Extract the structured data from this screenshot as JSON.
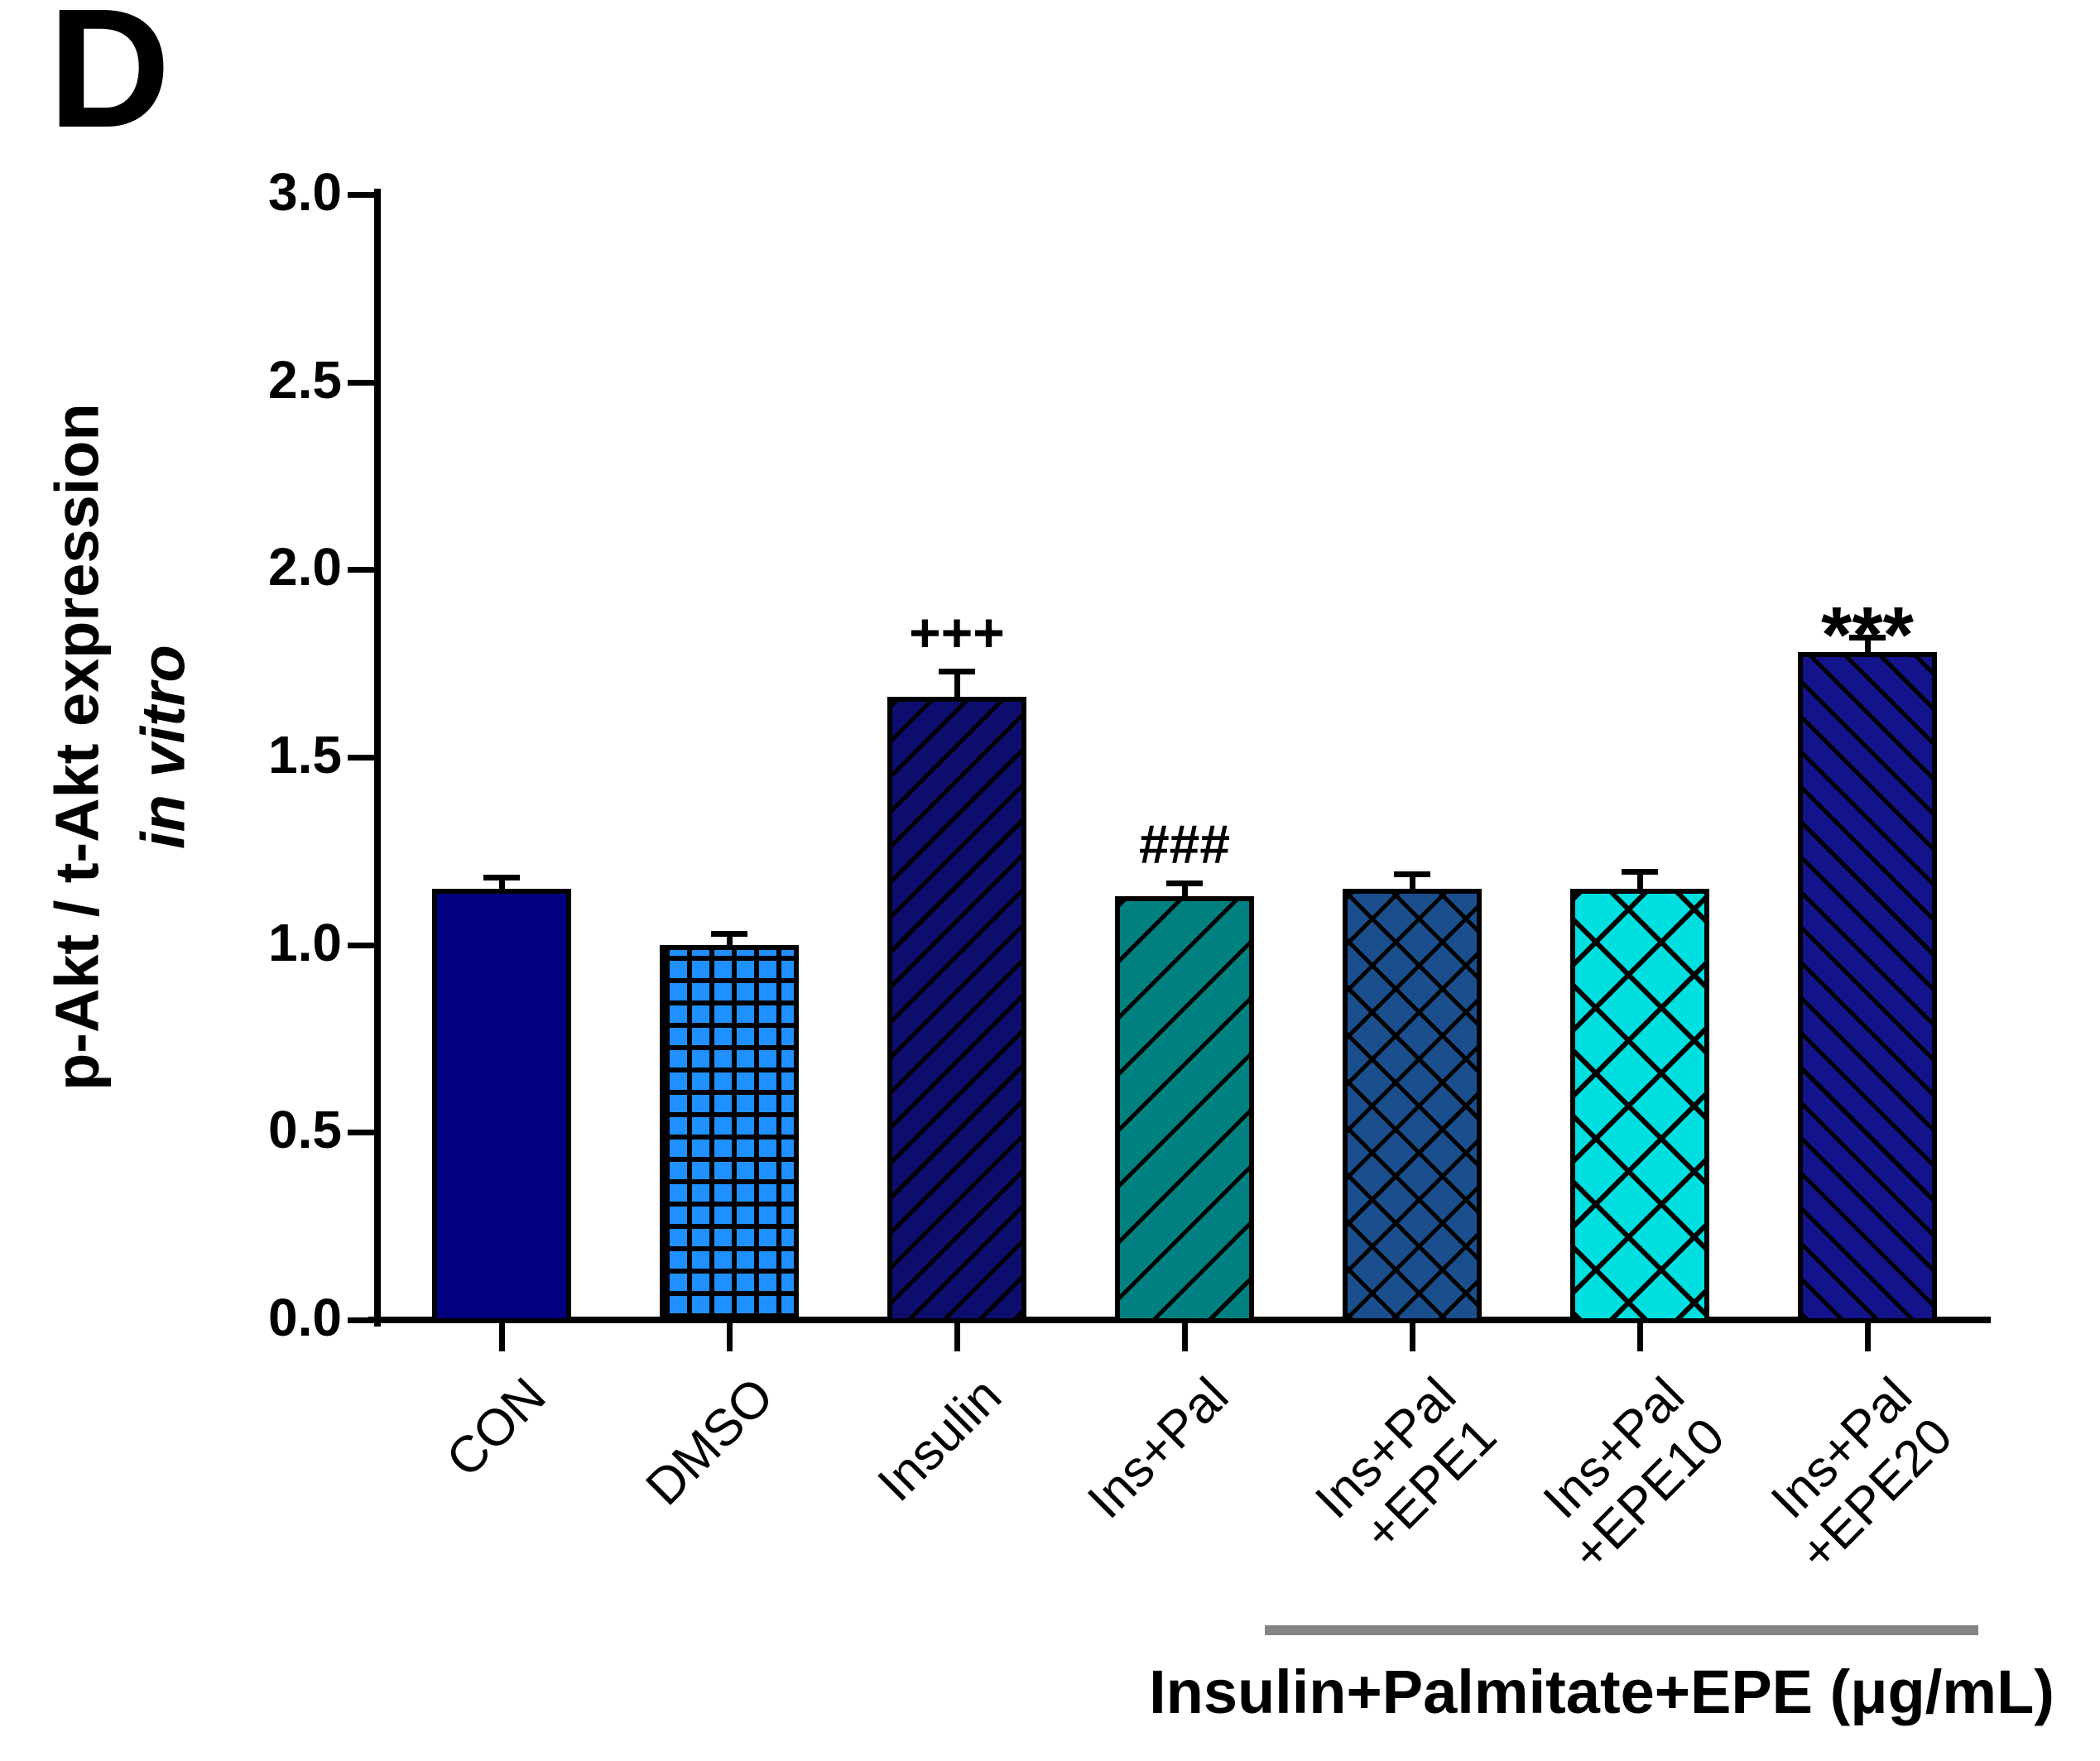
{
  "panel_label": "D",
  "chart_data": {
    "type": "bar",
    "title": "",
    "ylabel_line1": "p-Akt / t-Akt expression",
    "ylabel_line2": "in vitro",
    "xlabel": "",
    "ylim": [
      0.0,
      3.0
    ],
    "ytick_step": 0.5,
    "yticks": [
      "3.0",
      "2.5",
      "2.0",
      "1.5",
      "1.0",
      "0.5",
      "0.0"
    ],
    "grid": false,
    "legend": "none",
    "categories": [
      "CON",
      "DMSO",
      "Insulin",
      "Ins+Pal",
      "Ins+Pal+EPE1",
      "Ins+Pal+EPE10",
      "Ins+Pal+EPE20"
    ],
    "bars": [
      {
        "label_lines": [
          "CON"
        ],
        "value": 1.15,
        "error": 0.03,
        "annotation": "",
        "fill": "#000080",
        "pattern": "solid"
      },
      {
        "label_lines": [
          "DMSO"
        ],
        "value": 1.0,
        "error": 0.03,
        "annotation": "",
        "fill": "#1E90FF",
        "pattern": "grid"
      },
      {
        "label_lines": [
          "Insulin"
        ],
        "value": 1.66,
        "error": 0.07,
        "annotation": "+++",
        "fill": "#0D0D6E",
        "pattern": "hatch-forward-dense"
      },
      {
        "label_lines": [
          "Ins+Pal"
        ],
        "value": 1.13,
        "error": 0.035,
        "annotation": "###",
        "fill": "#008080",
        "pattern": "hatch-forward-wide"
      },
      {
        "label_lines": [
          "Ins+Pal",
          "+EPE1"
        ],
        "value": 1.15,
        "error": 0.04,
        "annotation": "",
        "fill": "#1A4E8C",
        "pattern": "diamond"
      },
      {
        "label_lines": [
          "Ins+Pal",
          "+EPE10"
        ],
        "value": 1.15,
        "error": 0.045,
        "annotation": "",
        "fill": "#00DFDF",
        "pattern": "diamond-large"
      },
      {
        "label_lines": [
          "Ins+Pal",
          "+EPE20"
        ],
        "value": 1.78,
        "error": 0.04,
        "annotation": "***",
        "fill": "#13138C",
        "pattern": "hatch-back-dense"
      }
    ],
    "group_label": {
      "text": "Insulin+Palmitate+EPE (μg/mL)",
      "applies_to_last_n_bars": 3
    }
  }
}
